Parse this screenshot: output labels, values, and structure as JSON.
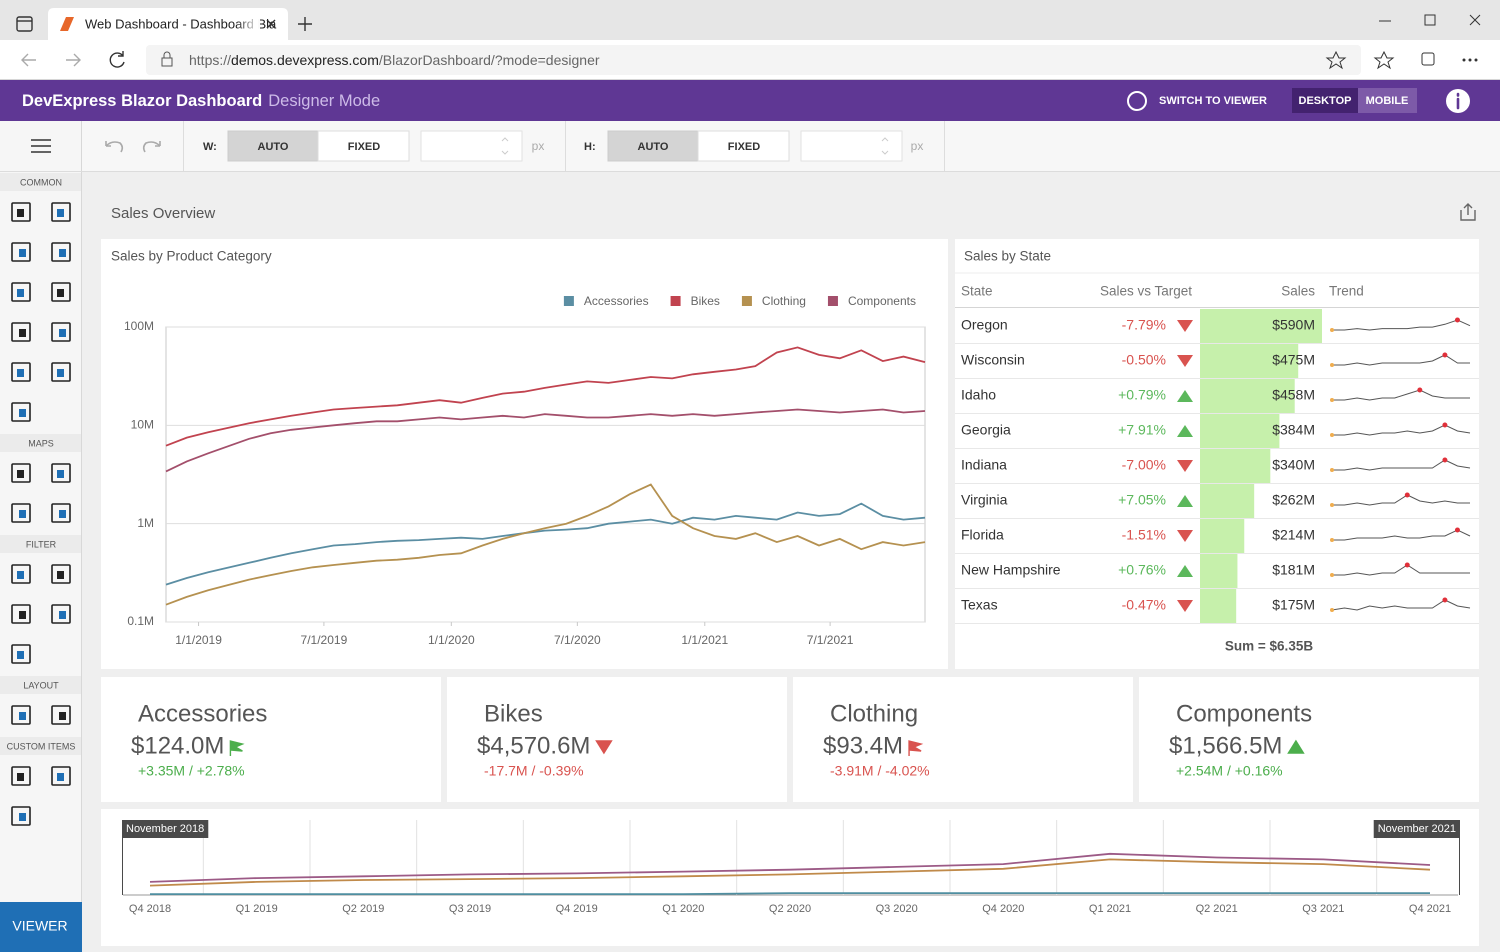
{
  "browser": {
    "tab_title": "Web Dashboard - Dashboard Bla",
    "url_scheme": "https://",
    "url_host": "demos.devexpress.com",
    "url_path": "/BlazorDashboard/?mode=designer"
  },
  "header": {
    "brand": "DevExpress Blazor Dashboard",
    "mode": "Designer Mode",
    "switch_button": "SWITCH TO VIEWER",
    "desktop_button": "DESKTOP",
    "mobile_button": "MOBILE"
  },
  "toolbar": {
    "width": {
      "label": "W:",
      "auto": "AUTO",
      "fixed": "FIXED",
      "unit": "px"
    },
    "height": {
      "label": "H:",
      "auto": "AUTO",
      "fixed": "FIXED",
      "unit": "px"
    }
  },
  "sidebar": {
    "sections": [
      "COMMON",
      "MAPS",
      "FILTER",
      "LAYOUT",
      "CUSTOM ITEMS"
    ],
    "viewer_button": "VIEWER"
  },
  "dashboard_title": "Sales Overview",
  "chart_data": [
    {
      "type": "line",
      "title": "Sales by Product Category",
      "legend": "top-right",
      "grid": true,
      "log_y": true,
      "x": [
        "11/15/2018",
        "12/15/2018",
        "1/15/2019",
        "2/15/2019",
        "3/15/2019",
        "4/15/2019",
        "5/15/2019",
        "6/15/2019",
        "7/15/2019",
        "8/15/2019",
        "9/15/2019",
        "10/15/2019",
        "11/15/2019",
        "12/15/2019",
        "1/15/2020",
        "2/15/2020",
        "3/15/2020",
        "4/15/2020",
        "5/15/2020",
        "6/15/2020",
        "7/15/2020",
        "8/15/2020",
        "9/15/2020",
        "10/15/2020",
        "11/15/2020",
        "12/15/2020",
        "1/15/2021",
        "2/15/2021",
        "3/15/2021",
        "4/15/2021",
        "5/15/2021",
        "6/15/2021",
        "7/15/2021",
        "8/15/2021",
        "9/15/2021",
        "10/15/2021",
        "11/15/2021"
      ],
      "xlim": [
        "11/15/2018",
        "11/15/2021"
      ],
      "xticks": [
        "1/1/2019",
        "7/1/2019",
        "1/1/2020",
        "7/1/2020",
        "1/1/2021",
        "7/1/2021"
      ],
      "ylim": [
        0.1,
        100
      ],
      "yticks": [
        {
          "value": 0.1,
          "label": "0.1M"
        },
        {
          "value": 1,
          "label": "1M"
        },
        {
          "value": 10,
          "label": "10M"
        },
        {
          "value": 100,
          "label": "100M"
        }
      ],
      "series": [
        {
          "name": "Accessories",
          "color": "#5b8ea3",
          "values": [
            0.24,
            0.28,
            0.32,
            0.36,
            0.4,
            0.45,
            0.5,
            0.55,
            0.6,
            0.62,
            0.65,
            0.67,
            0.68,
            0.7,
            0.72,
            0.7,
            0.75,
            0.8,
            0.85,
            0.87,
            0.9,
            1.0,
            1.05,
            1.1,
            1.0,
            1.15,
            1.1,
            1.2,
            1.15,
            1.1,
            1.3,
            1.2,
            1.25,
            1.6,
            1.2,
            1.1,
            1.15
          ]
        },
        {
          "name": "Bikes",
          "color": "#c1434f",
          "values": [
            6.2,
            7.5,
            8.5,
            9.5,
            10.5,
            11.5,
            12.5,
            13.5,
            14.5,
            15,
            15.5,
            16,
            17,
            18,
            17,
            19,
            21,
            22,
            24,
            26,
            28,
            27,
            29,
            31,
            30,
            33,
            35,
            37,
            40,
            55,
            62,
            52,
            48,
            58,
            45,
            50,
            44
          ]
        },
        {
          "name": "Clothing",
          "color": "#b59150",
          "values": [
            0.15,
            0.18,
            0.21,
            0.24,
            0.27,
            0.3,
            0.33,
            0.36,
            0.38,
            0.4,
            0.42,
            0.43,
            0.45,
            0.48,
            0.5,
            0.6,
            0.7,
            0.8,
            0.9,
            1.0,
            1.2,
            1.5,
            2.0,
            2.5,
            1.2,
            0.9,
            0.75,
            0.7,
            0.8,
            0.65,
            0.75,
            0.6,
            0.7,
            0.55,
            0.65,
            0.6,
            0.65
          ]
        },
        {
          "name": "Components",
          "color": "#a34f6b",
          "values": [
            3.4,
            4.3,
            5.2,
            6.2,
            7.3,
            8.3,
            9,
            9.5,
            10,
            10.5,
            11,
            11,
            11.5,
            12,
            11.5,
            12,
            12.5,
            12,
            13,
            12.5,
            12,
            12,
            12.5,
            13,
            12.5,
            13,
            12.5,
            13,
            13.5,
            14,
            14.5,
            14,
            13.5,
            14,
            14.5,
            13.5,
            14
          ]
        }
      ]
    },
    {
      "type": "line",
      "range_start": "November 2018",
      "range_end": "November 2021",
      "categories": [
        "Q4 2018",
        "Q1 2019",
        "Q2 2019",
        "Q3 2019",
        "Q4 2019",
        "Q1 2020",
        "Q2 2020",
        "Q3 2020",
        "Q4 2020",
        "Q1 2021",
        "Q2 2021",
        "Q3 2021",
        "Q4 2021"
      ],
      "ylim": [
        0,
        80
      ],
      "series": [
        {
          "color": "#9c5a86",
          "values": [
            14,
            18,
            20,
            22,
            23,
            25,
            27,
            30,
            33,
            44,
            40,
            38,
            32
          ]
        },
        {
          "color": "#c08a4a",
          "values": [
            10,
            14,
            16,
            17,
            18,
            20,
            22,
            25,
            28,
            38,
            35,
            33,
            27
          ]
        },
        {
          "color": "#4f8ea0",
          "values": [
            1,
            1,
            1,
            1,
            1,
            1,
            2,
            2,
            2,
            2,
            2,
            2,
            2
          ]
        }
      ]
    }
  ],
  "grid": {
    "title": "Sales by State",
    "columns": [
      "State",
      "Sales vs Target",
      "Sales",
      "Trend"
    ],
    "rows": [
      {
        "state": "Oregon",
        "variance": -7.79,
        "variance_label": "-7.79%",
        "sales": 590,
        "sales_label": "$590M",
        "trend": [
          5,
          5,
          6,
          5,
          6,
          6,
          6,
          7,
          7,
          9,
          12,
          8
        ]
      },
      {
        "state": "Wisconsin",
        "variance": -0.5,
        "variance_label": "-0.50%",
        "sales": 475,
        "sales_label": "$475M",
        "trend": [
          5,
          5,
          6,
          5,
          6,
          6,
          6,
          6,
          7,
          10,
          6,
          6
        ]
      },
      {
        "state": "Idaho",
        "variance": 0.79,
        "variance_label": "+0.79%",
        "sales": 458,
        "sales_label": "$458M",
        "trend": [
          5,
          5,
          6,
          5,
          6,
          6,
          8,
          10,
          7,
          6,
          6,
          6
        ]
      },
      {
        "state": "Georgia",
        "variance": 7.91,
        "variance_label": "+7.91%",
        "sales": 384,
        "sales_label": "$384M",
        "trend": [
          5,
          5,
          6,
          5,
          6,
          6,
          7,
          6,
          7,
          10,
          7,
          6
        ]
      },
      {
        "state": "Indiana",
        "variance": -7.0,
        "variance_label": "-7.00%",
        "sales": 340,
        "sales_label": "$340M",
        "trend": [
          5,
          5,
          6,
          5,
          6,
          6,
          6,
          6,
          6,
          10,
          7,
          6
        ]
      },
      {
        "state": "Virginia",
        "variance": 7.05,
        "variance_label": "+7.05%",
        "sales": 262,
        "sales_label": "$262M",
        "trend": [
          5,
          5,
          6,
          5,
          6,
          6,
          10,
          7,
          6,
          7,
          6,
          6
        ]
      },
      {
        "state": "Florida",
        "variance": -1.51,
        "variance_label": "-1.51%",
        "sales": 214,
        "sales_label": "$214M",
        "trend": [
          5,
          5,
          6,
          6,
          6,
          7,
          6,
          6,
          7,
          7,
          10,
          7
        ]
      },
      {
        "state": "New Hampshire",
        "variance": 0.76,
        "variance_label": "+0.76%",
        "sales": 181,
        "sales_label": "$181M",
        "trend": [
          5,
          5,
          6,
          5,
          6,
          6,
          10,
          6,
          6,
          6,
          6,
          6
        ]
      },
      {
        "state": "Texas",
        "variance": -0.47,
        "variance_label": "-0.47%",
        "sales": 175,
        "sales_label": "$175M",
        "trend": [
          5,
          6,
          5,
          7,
          6,
          7,
          6,
          6,
          6,
          10,
          7,
          6
        ]
      }
    ],
    "total": "Sum = $6.35B"
  },
  "cards": [
    {
      "name": "Accessories",
      "value": "$124.0M",
      "delta": "+3.35M / +2.78%",
      "indicator": "flag-green"
    },
    {
      "name": "Bikes",
      "value": "$4,570.6M",
      "delta": "-17.7M / -0.39%",
      "indicator": "arrow-down-red"
    },
    {
      "name": "Clothing",
      "value": "$93.4M",
      "delta": "-3.91M / -4.02%",
      "indicator": "flag-red"
    },
    {
      "name": "Components",
      "value": "$1,566.5M",
      "delta": "+2.54M / +0.16%",
      "indicator": "arrow-up-green"
    }
  ]
}
